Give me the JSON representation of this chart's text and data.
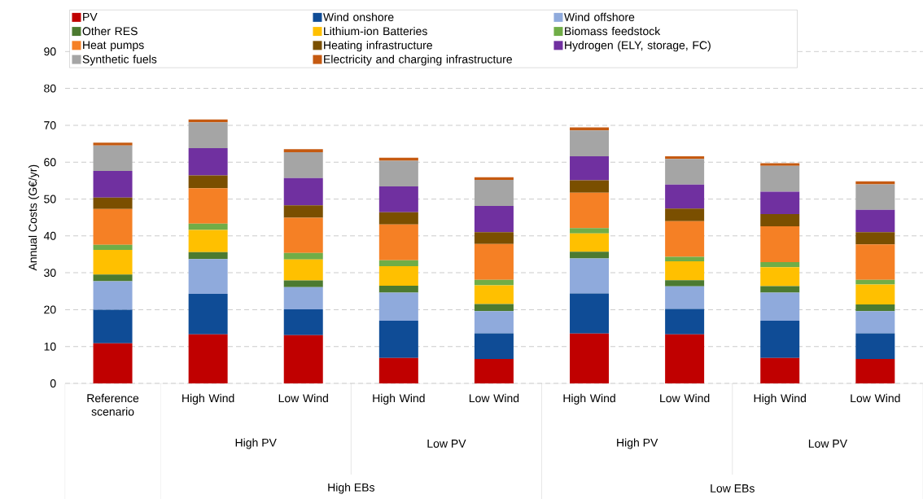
{
  "chart_data": {
    "type": "bar",
    "stacked": true,
    "ylabel": "Annual Costs (G€/yr)",
    "categories": [
      "Reference scenario",
      "High Wind",
      "Low Wind",
      "High Wind",
      "Low Wind",
      "High Wind",
      "Low Wind",
      "High Wind",
      "Low Wind"
    ],
    "annotations": [
      "High PV",
      "Low PV",
      "High PV",
      "Low PV",
      "High EBs",
      "Low EBs"
    ],
    "ylim": [
      0,
      90
    ],
    "yticks": [
      0,
      10,
      20,
      30,
      40,
      50,
      60,
      70,
      80,
      90
    ],
    "grid": "y",
    "legend": "top",
    "series": [
      {
        "name": "PV",
        "color": "#c00000",
        "values": [
          10.9,
          13.3,
          13.1,
          6.9,
          6.6,
          13.5,
          13.3,
          6.9,
          6.6
        ]
      },
      {
        "name": "Wind onshore",
        "color": "#0f4c96",
        "values": [
          9.1,
          11.0,
          7.0,
          10.1,
          7.0,
          10.9,
          6.9,
          10.1,
          7.0
        ]
      },
      {
        "name": "Wind offshore",
        "color": "#8faadc",
        "values": [
          7.7,
          9.4,
          6.0,
          7.6,
          6.0,
          9.5,
          6.1,
          7.6,
          6.0
        ]
      },
      {
        "name": "Other RES",
        "color": "#4c7a30",
        "values": [
          1.8,
          1.9,
          1.8,
          1.9,
          1.9,
          1.8,
          1.7,
          1.8,
          1.8
        ]
      },
      {
        "name": "Lithium-ion Batteries",
        "color": "#ffc000",
        "values": [
          6.7,
          6.0,
          5.7,
          5.3,
          5.1,
          5.0,
          5.1,
          5.1,
          5.4
        ]
      },
      {
        "name": "Biomass feedstock",
        "color": "#70ad47",
        "values": [
          1.4,
          1.7,
          1.8,
          1.6,
          1.5,
          1.4,
          1.2,
          1.4,
          1.3
        ]
      },
      {
        "name": "Heat pumps",
        "color": "#f58025",
        "values": [
          9.7,
          9.6,
          9.5,
          9.7,
          9.7,
          9.6,
          9.7,
          9.7,
          9.6
        ]
      },
      {
        "name": "Heating infrastructure",
        "color": "#7a4f00",
        "values": [
          3.1,
          3.5,
          3.4,
          3.3,
          3.2,
          3.4,
          3.4,
          3.3,
          3.3
        ]
      },
      {
        "name": "Hydrogen (ELY, storage, FC)",
        "color": "#7030a0",
        "values": [
          7.2,
          7.4,
          7.4,
          7.0,
          7.1,
          6.5,
          6.5,
          6.1,
          6.1
        ]
      },
      {
        "name": "Synthetic fuels",
        "color": "#a5a5a5",
        "values": [
          6.9,
          7.0,
          7.0,
          7.0,
          7.1,
          7.0,
          7.0,
          7.0,
          6.9
        ]
      },
      {
        "name": "Electricity and charging infrastructure",
        "color": "#c55a11",
        "values": [
          0.8,
          0.8,
          0.8,
          0.8,
          0.7,
          0.8,
          0.7,
          0.7,
          0.8
        ]
      }
    ]
  }
}
